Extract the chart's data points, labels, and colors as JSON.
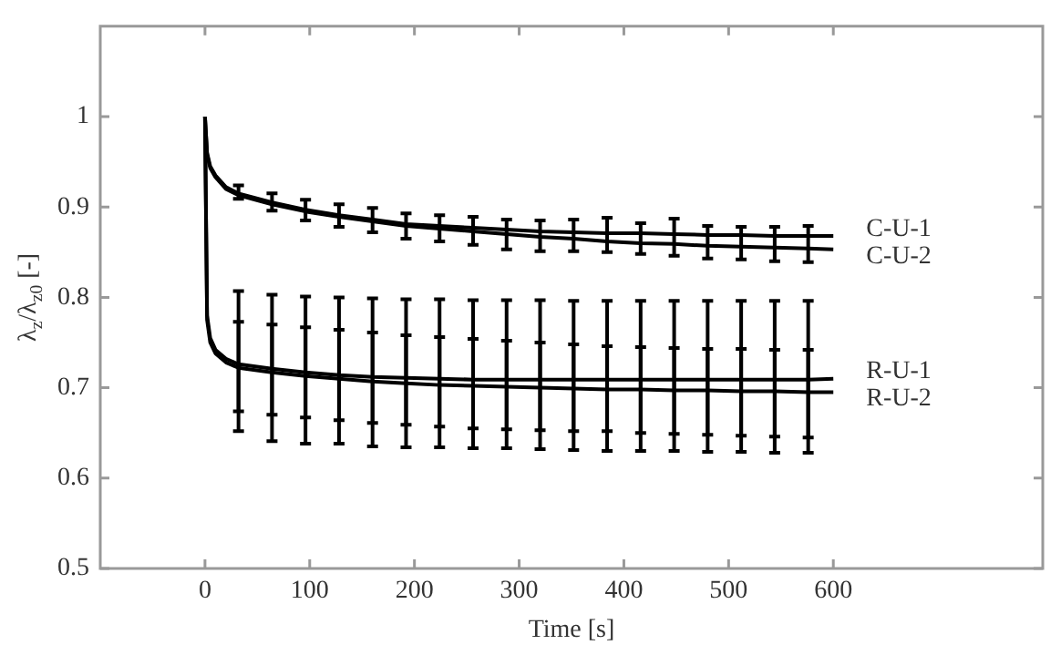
{
  "chart_data": {
    "type": "line",
    "xlabel": "Time [s]",
    "ylabel": "λ$_{z}$/λ$_{z0}$ [-]",
    "xlim": [
      -100,
      800
    ],
    "xticks": [
      0,
      100,
      200,
      300,
      400,
      500,
      600
    ],
    "ylim": [
      0.5,
      1.1
    ],
    "yticks": [
      0.5,
      0.6,
      0.7,
      0.8,
      0.9,
      1
    ],
    "x": [
      0,
      2,
      5,
      10,
      20,
      32,
      64,
      96,
      128,
      160,
      192,
      224,
      256,
      288,
      320,
      352,
      384,
      416,
      448,
      480,
      512,
      544,
      576,
      600
    ],
    "series": [
      {
        "name": "C-U-1",
        "color": "#000000",
        "values": [
          1,
          0.96,
          0.945,
          0.935,
          0.922,
          0.915,
          0.905,
          0.897,
          0.891,
          0.886,
          0.881,
          0.879,
          0.877,
          0.875,
          0.873,
          0.872,
          0.871,
          0.871,
          0.87,
          0.869,
          0.869,
          0.868,
          0.868,
          0.868
        ],
        "errors": [
          null,
          null,
          null,
          null,
          null,
          [
            0.909,
            0.924
          ],
          [
            0.896,
            0.915
          ],
          [
            0.885,
            0.908
          ],
          [
            0.878,
            0.903
          ],
          [
            0.872,
            0.899
          ],
          [
            0.865,
            0.893
          ],
          [
            0.862,
            0.891
          ],
          [
            0.858,
            0.889
          ],
          [
            0.853,
            0.886
          ],
          [
            0.851,
            0.885
          ],
          [
            0.851,
            0.886
          ],
          [
            0.85,
            0.888
          ],
          [
            0.848,
            0.882
          ],
          [
            0.846,
            0.887
          ],
          [
            0.843,
            0.879
          ],
          [
            0.842,
            0.878
          ],
          [
            0.84,
            0.878
          ],
          [
            0.839,
            0.879
          ],
          null
        ]
      },
      {
        "name": "C-U-2",
        "color": "#000000",
        "values": [
          1,
          0.958,
          0.943,
          0.933,
          0.92,
          0.913,
          0.903,
          0.895,
          0.889,
          0.884,
          0.879,
          0.876,
          0.873,
          0.87,
          0.867,
          0.865,
          0.862,
          0.86,
          0.859,
          0.857,
          0.856,
          0.855,
          0.854,
          0.853
        ]
      },
      {
        "name": "R-U-1",
        "color": "#000000",
        "values": [
          1,
          0.78,
          0.755,
          0.742,
          0.732,
          0.726,
          0.721,
          0.717,
          0.714,
          0.712,
          0.711,
          0.71,
          0.709,
          0.709,
          0.709,
          0.709,
          0.709,
          0.709,
          0.709,
          0.709,
          0.709,
          0.709,
          0.709,
          0.71
        ],
        "errors": [
          null,
          null,
          null,
          null,
          null,
          [
            0.652,
            0.807
          ],
          [
            0.641,
            0.803
          ],
          [
            0.638,
            0.801
          ],
          [
            0.638,
            0.8
          ],
          [
            0.635,
            0.799
          ],
          [
            0.634,
            0.798
          ],
          [
            0.634,
            0.798
          ],
          [
            0.633,
            0.797
          ],
          [
            0.633,
            0.797
          ],
          [
            0.632,
            0.797
          ],
          [
            0.631,
            0.796
          ],
          [
            0.63,
            0.796
          ],
          [
            0.63,
            0.796
          ],
          [
            0.63,
            0.796
          ],
          [
            0.629,
            0.796
          ],
          [
            0.629,
            0.796
          ],
          [
            0.628,
            0.796
          ],
          [
            0.628,
            0.796
          ],
          null
        ]
      },
      {
        "name": "R-U-2",
        "color": "#000000",
        "values": [
          1,
          0.775,
          0.75,
          0.738,
          0.728,
          0.722,
          0.717,
          0.713,
          0.71,
          0.707,
          0.705,
          0.703,
          0.702,
          0.701,
          0.7,
          0.699,
          0.698,
          0.698,
          0.697,
          0.697,
          0.696,
          0.696,
          0.695,
          0.695
        ],
        "errors": [
          null,
          null,
          null,
          null,
          null,
          [
            0.674,
            0.773
          ],
          [
            0.67,
            0.77
          ],
          [
            0.667,
            0.767
          ],
          [
            0.664,
            0.764
          ],
          [
            0.661,
            0.761
          ],
          [
            0.659,
            0.758
          ],
          [
            0.657,
            0.756
          ],
          [
            0.655,
            0.754
          ],
          [
            0.654,
            0.752
          ],
          [
            0.653,
            0.75
          ],
          [
            0.652,
            0.748
          ],
          [
            0.652,
            0.746
          ],
          [
            0.65,
            0.745
          ],
          [
            0.649,
            0.744
          ],
          [
            0.648,
            0.743
          ],
          [
            0.647,
            0.743
          ],
          [
            0.646,
            0.742
          ],
          [
            0.645,
            0.742
          ],
          null
        ]
      }
    ]
  }
}
